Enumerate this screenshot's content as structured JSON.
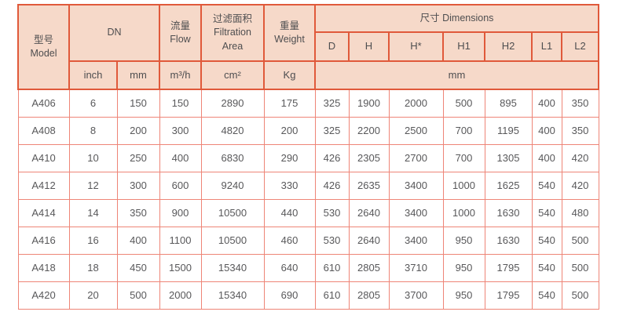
{
  "table": {
    "header": {
      "model": "型号\nModel",
      "dn": "DN",
      "flow": "流量\nFlow",
      "filtration_area": "过滤面积\nFiltration\nArea",
      "weight": "重量\nWeight",
      "dimensions": "尺寸 Dimensions",
      "dim_columns": [
        "D",
        "H",
        "H*",
        "H1",
        "H2",
        "L1",
        "L2"
      ],
      "units": {
        "dn_inch": "inch",
        "dn_mm": "mm",
        "flow": "m³/h",
        "filtration_area": "cm²",
        "weight": "Kg",
        "dimensions": "mm"
      }
    },
    "rows": [
      {
        "model": "A406",
        "values": [
          "6",
          "150",
          "150",
          "2890",
          "175",
          "325",
          "1900",
          "2000",
          "500",
          "895",
          "400",
          "350"
        ]
      },
      {
        "model": "A408",
        "values": [
          "8",
          "200",
          "300",
          "4820",
          "200",
          "325",
          "2200",
          "2500",
          "700",
          "1195",
          "400",
          "350"
        ]
      },
      {
        "model": "A410",
        "values": [
          "10",
          "250",
          "400",
          "6830",
          "290",
          "426",
          "2305",
          "2700",
          "700",
          "1305",
          "400",
          "420"
        ]
      },
      {
        "model": "A412",
        "values": [
          "12",
          "300",
          "600",
          "9240",
          "330",
          "426",
          "2635",
          "3400",
          "1000",
          "1625",
          "540",
          "420"
        ]
      },
      {
        "model": "A414",
        "values": [
          "14",
          "350",
          "900",
          "10500",
          "440",
          "530",
          "2640",
          "3400",
          "1000",
          "1630",
          "540",
          "480"
        ]
      },
      {
        "model": "A416",
        "values": [
          "16",
          "400",
          "1100",
          "10500",
          "460",
          "530",
          "2640",
          "3400",
          "950",
          "1630",
          "540",
          "500"
        ]
      },
      {
        "model": "A418",
        "values": [
          "18",
          "450",
          "1500",
          "15340",
          "640",
          "610",
          "2805",
          "3710",
          "950",
          "1795",
          "540",
          "500"
        ]
      },
      {
        "model": "A420",
        "values": [
          "20",
          "500",
          "2000",
          "15340",
          "690",
          "610",
          "2805",
          "3700",
          "950",
          "1795",
          "540",
          "500"
        ]
      }
    ]
  },
  "colors": {
    "header_bg": "#f6d9c9",
    "header_border": "#e0593a",
    "data_border": "#ee8577",
    "text_header": "#4e4e50",
    "text_data": "#58585a"
  }
}
